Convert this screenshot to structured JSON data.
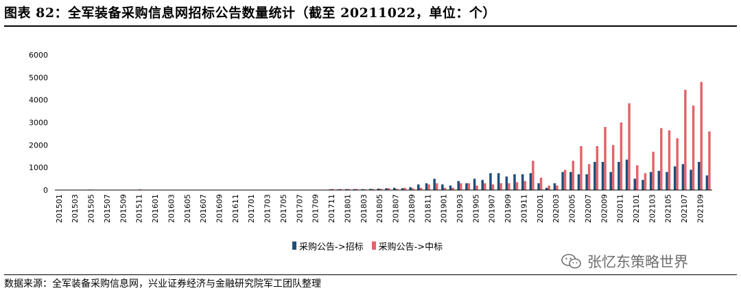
{
  "title": "图表 82：全军装备采购信息网招标公告数量统计（截至 20211022，单位：个）",
  "source": "数据来源：全军装备采购信息网，兴业证券经济与金融研究院军工团队整理",
  "watermark": "张忆东策略世界",
  "chart_data": {
    "type": "bar",
    "ylim": [
      0,
      6000
    ],
    "yticks": [
      0,
      1000,
      2000,
      3000,
      4000,
      5000,
      6000
    ],
    "grid": false,
    "legend_position": "bottom",
    "categories": [
      "201501",
      "201502",
      "201503",
      "201504",
      "201505",
      "201506",
      "201507",
      "201508",
      "201509",
      "201510",
      "201511",
      "201512",
      "201601",
      "201602",
      "201603",
      "201604",
      "201605",
      "201606",
      "201607",
      "201608",
      "201609",
      "201610",
      "201611",
      "201612",
      "201701",
      "201702",
      "201703",
      "201704",
      "201705",
      "201706",
      "201707",
      "201708",
      "201709",
      "201710",
      "201711",
      "201712",
      "201801",
      "201802",
      "201803",
      "201804",
      "201805",
      "201806",
      "201807",
      "201808",
      "201809",
      "201810",
      "201811",
      "201812",
      "201901",
      "201902",
      "201903",
      "201904",
      "201905",
      "201906",
      "201907",
      "201908",
      "201909",
      "201910",
      "201911",
      "201912",
      "202001",
      "202002",
      "202003",
      "202004",
      "202005",
      "202006",
      "202007",
      "202008",
      "202009",
      "202010",
      "202011",
      "202012",
      "202101",
      "202102",
      "202103",
      "202104",
      "202105",
      "202106",
      "202107",
      "202108",
      "202109",
      "202110"
    ],
    "tick_labels": [
      "201501",
      "201503",
      "201505",
      "201507",
      "201509",
      "201511",
      "201601",
      "201603",
      "201605",
      "201607",
      "201609",
      "201611",
      "201701",
      "201703",
      "201705",
      "201707",
      "201709",
      "201711",
      "201801",
      "201803",
      "201805",
      "201807",
      "201809",
      "201811",
      "201901",
      "201903",
      "201905",
      "201907",
      "201909",
      "201911",
      "202001",
      "202003",
      "202005",
      "202007",
      "202009",
      "202011",
      "202101",
      "202103",
      "202105",
      "202107",
      "202109"
    ],
    "series": [
      {
        "name": "采购公告->招标",
        "color": "#1f4e79",
        "values": [
          0,
          0,
          0,
          0,
          20,
          0,
          0,
          0,
          0,
          0,
          0,
          0,
          0,
          0,
          0,
          0,
          0,
          0,
          0,
          0,
          0,
          0,
          0,
          0,
          0,
          0,
          0,
          0,
          0,
          0,
          0,
          0,
          0,
          0,
          30,
          30,
          40,
          40,
          40,
          50,
          60,
          80,
          100,
          80,
          130,
          250,
          300,
          500,
          250,
          200,
          400,
          300,
          500,
          450,
          750,
          750,
          600,
          700,
          700,
          750,
          300,
          100,
          300,
          800,
          800,
          700,
          700,
          1250,
          1250,
          800,
          1250,
          1350,
          500,
          450,
          800,
          850,
          800,
          1050,
          1150,
          900,
          1250,
          650
        ]
      },
      {
        "name": "采购公告->中标",
        "color": "#e0656b",
        "values": [
          0,
          0,
          0,
          0,
          20,
          0,
          0,
          0,
          0,
          0,
          30,
          0,
          0,
          0,
          0,
          0,
          0,
          0,
          0,
          0,
          0,
          0,
          0,
          0,
          0,
          0,
          0,
          0,
          0,
          0,
          0,
          0,
          0,
          0,
          50,
          50,
          50,
          50,
          40,
          50,
          60,
          80,
          50,
          100,
          80,
          100,
          250,
          300,
          100,
          100,
          300,
          300,
          200,
          300,
          250,
          300,
          300,
          350,
          400,
          1300,
          550,
          200,
          200,
          900,
          1300,
          1950,
          1150,
          1950,
          2800,
          2000,
          3000,
          3850,
          1100,
          750,
          1700,
          2750,
          2650,
          2300,
          4450,
          3750,
          4800,
          2600
        ]
      }
    ]
  }
}
